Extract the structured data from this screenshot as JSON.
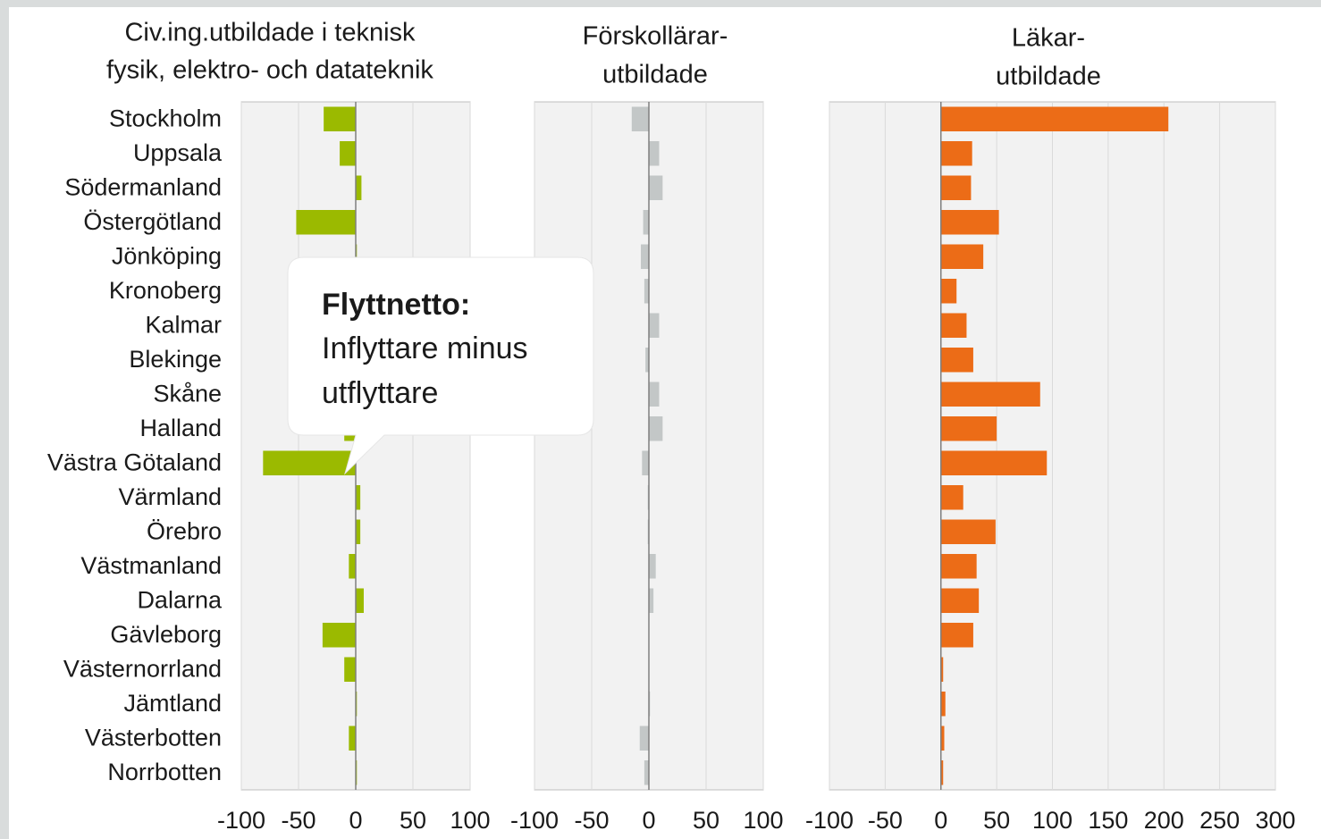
{
  "chart_data": [
    {
      "type": "hbar",
      "title": [
        "Civ.ing.utbildade i teknisk",
        "fysik, elektro- och datateknik"
      ],
      "categories": [
        "Stockholm",
        "Uppsala",
        "Södermanland",
        "Östergötland",
        "Jönköping",
        "Kronoberg",
        "Kalmar",
        "Blekinge",
        "Skåne",
        "Halland",
        "Västra Götaland",
        "Värmland",
        "Örebro",
        "Västmanland",
        "Dalarna",
        "Gävleborg",
        "Västernorrland",
        "Jämtland",
        "Västerbotten",
        "Norrbotten"
      ],
      "values": [
        -28,
        -14,
        5,
        -52,
        1,
        -3,
        -5,
        -8,
        3,
        -10,
        -81,
        4,
        4,
        -6,
        7,
        -29,
        -10,
        1,
        -6,
        1
      ],
      "color": "#9bba00",
      "xlim": [
        -100,
        100
      ],
      "xticks": [
        -100,
        -50,
        0,
        50,
        100
      ],
      "grid": true,
      "annotation": {
        "title": "Flyttnetto:",
        "text": [
          "Inflyttare minus",
          "utflyttare"
        ]
      }
    },
    {
      "type": "hbar",
      "title": [
        "Förskollärar-",
        "utbildade"
      ],
      "values": [
        -15,
        9,
        12,
        -5,
        -7,
        -4,
        9,
        -3,
        9,
        12,
        -6,
        -1,
        -1,
        6,
        4,
        0,
        0,
        1,
        -8,
        -4
      ],
      "color": "#c3c7c7",
      "xlim": [
        -100,
        100
      ],
      "xticks": [
        -100,
        -50,
        0,
        50,
        100
      ],
      "grid": true
    },
    {
      "type": "hbar",
      "title": [
        "Läkar-",
        "utbildade"
      ],
      "values": [
        204,
        28,
        27,
        52,
        38,
        14,
        23,
        29,
        89,
        50,
        95,
        20,
        49,
        32,
        34,
        29,
        2,
        4,
        3,
        2
      ],
      "color": "#ec6c17",
      "xlim": [
        -100,
        300
      ],
      "xticks": [
        -100,
        -50,
        0,
        50,
        100,
        150,
        200,
        250,
        300
      ],
      "grid": true
    }
  ]
}
